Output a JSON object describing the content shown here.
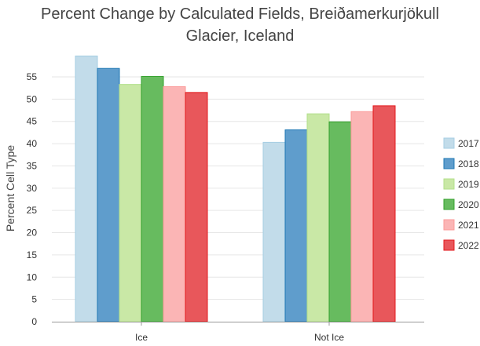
{
  "chart_data": {
    "type": "bar",
    "title_lines": [
      "Percent Change by Calculated Fields, Breiðamerkurjökull",
      "Glacier, Iceland"
    ],
    "xlabel": "",
    "ylabel": "Percent Cell Type",
    "ylim": [
      0,
      60
    ],
    "yticks": [
      0,
      5,
      10,
      15,
      20,
      25,
      30,
      35,
      40,
      45,
      50,
      55
    ],
    "categories": [
      "Ice",
      "Not Ice"
    ],
    "series": [
      {
        "name": "2017",
        "color": "#c2dcea",
        "border": "#a6cee3",
        "values": [
          59.7,
          40.3
        ]
      },
      {
        "name": "2018",
        "color": "#5f9dcc",
        "border": "#1f78b4",
        "values": [
          56.9,
          43.1
        ]
      },
      {
        "name": "2019",
        "color": "#c9e8a6",
        "border": "#b2df8a",
        "values": [
          53.3,
          46.7
        ]
      },
      {
        "name": "2020",
        "color": "#67bb5f",
        "border": "#33a02c",
        "values": [
          55.1,
          44.9
        ]
      },
      {
        "name": "2021",
        "color": "#fbb5b5",
        "border": "#fb9a99",
        "values": [
          52.8,
          47.2
        ]
      },
      {
        "name": "2022",
        "color": "#e8575b",
        "border": "#e31a1c",
        "values": [
          51.5,
          48.5
        ]
      }
    ],
    "grid": true,
    "legend_position": "right"
  }
}
